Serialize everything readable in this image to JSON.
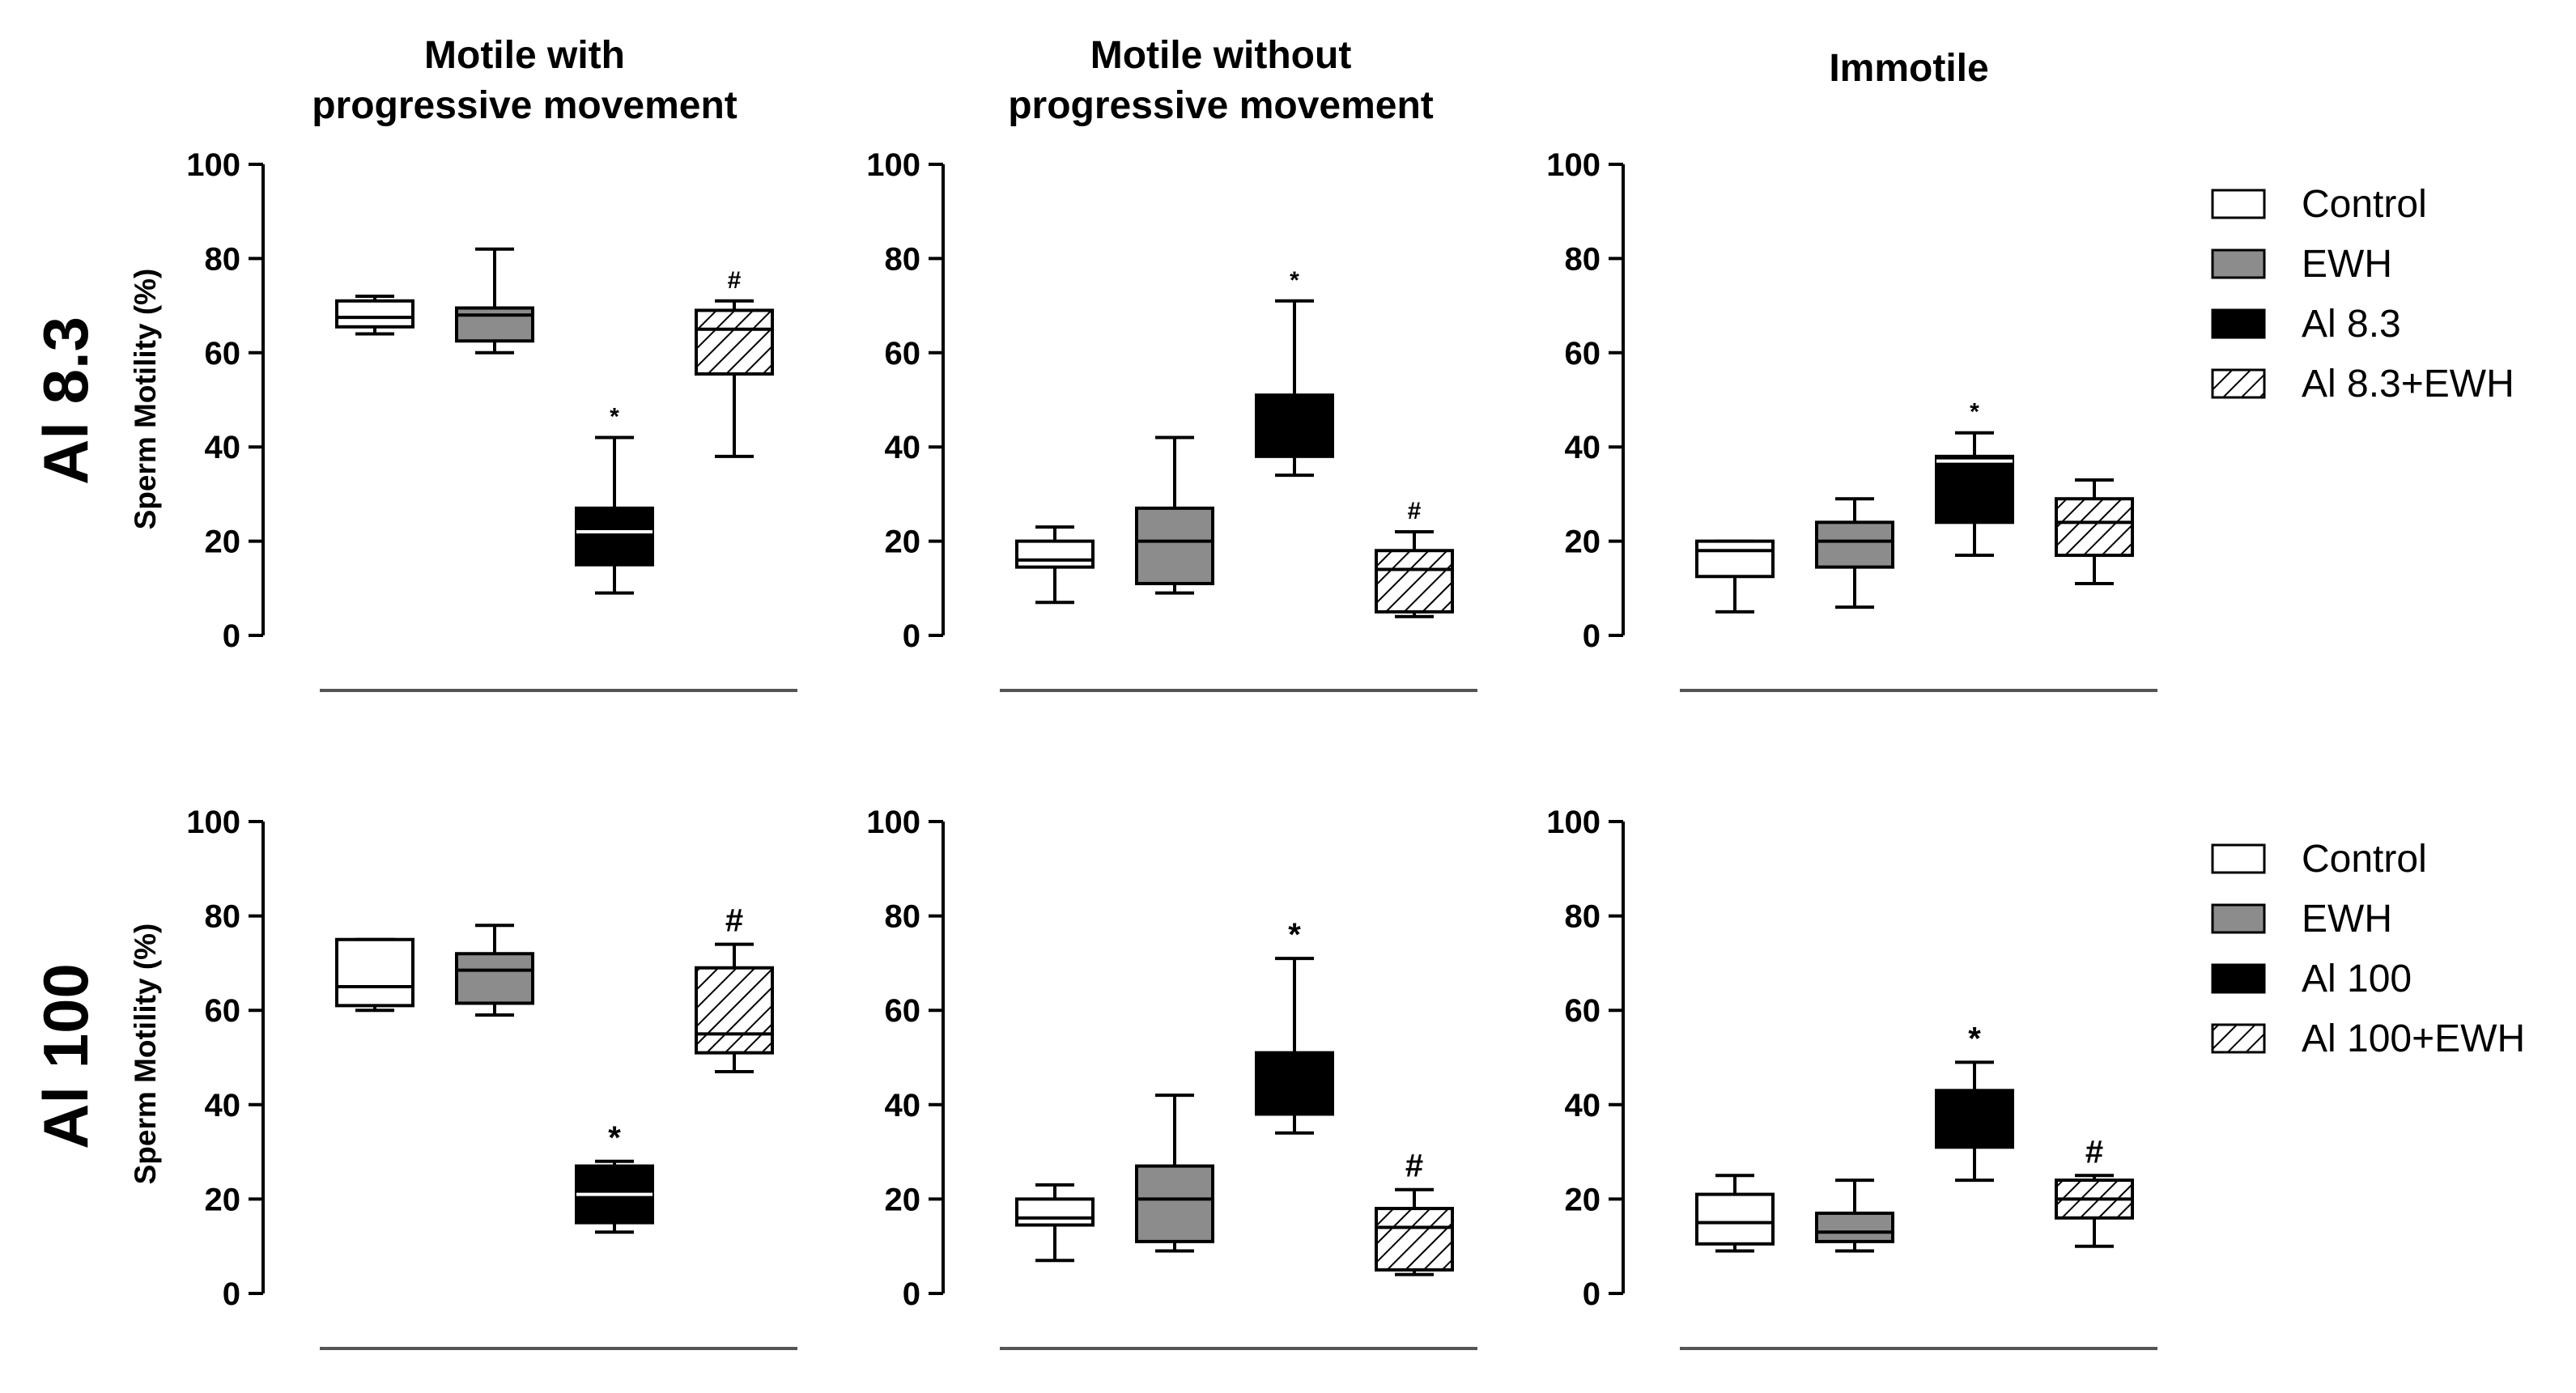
{
  "chart_data": [
    {
      "type": "box",
      "panel": "row1-col1",
      "title": "Motile with progressive movement",
      "ylabel": "Sperm Motility (%)",
      "ylim": [
        0,
        100
      ],
      "yticks": [
        "0",
        "20",
        "40",
        "60",
        "80",
        "100"
      ],
      "series": [
        {
          "name": "Control",
          "min": 64,
          "q1": 65.5,
          "median": 67.5,
          "q3": 71,
          "max": 72,
          "sig": ""
        },
        {
          "name": "EWH",
          "min": 60,
          "q1": 62.5,
          "median": 68,
          "q3": 69.5,
          "max": 82,
          "sig": ""
        },
        {
          "name": "Al 8.3",
          "min": 9,
          "q1": 15,
          "median": 22,
          "q3": 27,
          "max": 42,
          "sig": "*"
        },
        {
          "name": "Al 8.3+EWH",
          "min": 38,
          "q1": 55.5,
          "median": 65,
          "q3": 69,
          "max": 71,
          "sig": "#"
        }
      ]
    },
    {
      "type": "box",
      "panel": "row1-col2",
      "title": "Motile without progressive movement",
      "ylabel": "",
      "ylim": [
        0,
        100
      ],
      "yticks": [
        "0",
        "20",
        "40",
        "60",
        "80",
        "100"
      ],
      "series": [
        {
          "name": "Control",
          "min": 7,
          "q1": 14.5,
          "median": 16,
          "q3": 20,
          "max": 23,
          "sig": ""
        },
        {
          "name": "EWH",
          "min": 9,
          "q1": 11,
          "median": 20,
          "q3": 27,
          "max": 42,
          "sig": ""
        },
        {
          "name": "Al 8.3",
          "min": 34,
          "q1": 38,
          "median": 38,
          "q3": 51,
          "max": 71,
          "sig": "*"
        },
        {
          "name": "Al 8.3+EWH",
          "min": 4,
          "q1": 5,
          "median": 14,
          "q3": 18,
          "max": 22,
          "sig": "#"
        }
      ]
    },
    {
      "type": "box",
      "panel": "row1-col3",
      "title": "Immotile",
      "ylabel": "",
      "ylim": [
        0,
        100
      ],
      "yticks": [
        "0",
        "20",
        "40",
        "60",
        "80",
        "100"
      ],
      "series": [
        {
          "name": "Control",
          "min": 5,
          "q1": 12.5,
          "median": 18,
          "q3": 20,
          "max": 20,
          "sig": ""
        },
        {
          "name": "EWH",
          "min": 6,
          "q1": 14.5,
          "median": 20,
          "q3": 24,
          "max": 29,
          "sig": ""
        },
        {
          "name": "Al 8.3",
          "min": 17,
          "q1": 24,
          "median": 37,
          "q3": 38,
          "max": 43,
          "sig": "*"
        },
        {
          "name": "Al 8.3+EWH",
          "min": 11,
          "q1": 17,
          "median": 24,
          "q3": 29,
          "max": 33,
          "sig": ""
        }
      ]
    },
    {
      "type": "box",
      "panel": "row2-col1",
      "title": "",
      "ylabel": "Sperm Motility (%)",
      "ylim": [
        0,
        100
      ],
      "yticks": [
        "0",
        "20",
        "40",
        "60",
        "80",
        "100"
      ],
      "series": [
        {
          "name": "Control",
          "min": 60,
          "q1": 61,
          "median": 65,
          "q3": 75,
          "max": 75,
          "sig": ""
        },
        {
          "name": "EWH",
          "min": 59,
          "q1": 61.5,
          "median": 68.5,
          "q3": 72,
          "max": 78,
          "sig": ""
        },
        {
          "name": "Al 100",
          "min": 13,
          "q1": 15,
          "median": 21,
          "q3": 27,
          "max": 28,
          "sig": "*"
        },
        {
          "name": "Al 100+EWH",
          "min": 47,
          "q1": 51,
          "median": 55,
          "q3": 69,
          "max": 74,
          "sig": "#"
        }
      ]
    },
    {
      "type": "box",
      "panel": "row2-col2",
      "title": "",
      "ylabel": "",
      "ylim": [
        0,
        100
      ],
      "yticks": [
        "0",
        "20",
        "40",
        "60",
        "80",
        "100"
      ],
      "series": [
        {
          "name": "Control",
          "min": 7,
          "q1": 14.5,
          "median": 16,
          "q3": 20,
          "max": 23,
          "sig": ""
        },
        {
          "name": "EWH",
          "min": 9,
          "q1": 11,
          "median": 20,
          "q3": 27,
          "max": 42,
          "sig": ""
        },
        {
          "name": "Al 100",
          "min": 34,
          "q1": 38,
          "median": 38,
          "q3": 51,
          "max": 71,
          "sig": "*"
        },
        {
          "name": "Al 100+EWH",
          "min": 4,
          "q1": 5,
          "median": 14,
          "q3": 18,
          "max": 22,
          "sig": "#"
        }
      ]
    },
    {
      "type": "box",
      "panel": "row2-col3",
      "title": "",
      "ylabel": "",
      "ylim": [
        0,
        100
      ],
      "yticks": [
        "0",
        "20",
        "40",
        "60",
        "80",
        "100"
      ],
      "series": [
        {
          "name": "Control",
          "min": 9,
          "q1": 10.5,
          "median": 15,
          "q3": 21,
          "max": 25,
          "sig": ""
        },
        {
          "name": "EWH",
          "min": 9,
          "q1": 11,
          "median": 13,
          "q3": 17,
          "max": 24,
          "sig": ""
        },
        {
          "name": "Al 100",
          "min": 24,
          "q1": 31,
          "median": 31,
          "q3": 43,
          "max": 49,
          "sig": "*"
        },
        {
          "name": "Al 100+EWH",
          "min": 10,
          "q1": 16,
          "median": 20,
          "q3": 24,
          "max": 25,
          "sig": "#"
        }
      ]
    }
  ],
  "row_labels": [
    "Al 8.3",
    "Al 100"
  ],
  "legends": [
    [
      "Control",
      "EWH",
      "Al 8.3",
      "Al 8.3+EWH"
    ],
    [
      "Control",
      "EWH",
      "Al 100",
      "Al 100+EWH"
    ]
  ],
  "colors": {
    "control": "#ffffff",
    "ewh": "#8c8c8c",
    "al": "#000000",
    "hatch": "#000000",
    "axis": "#000000",
    "baseline": "#555555"
  }
}
